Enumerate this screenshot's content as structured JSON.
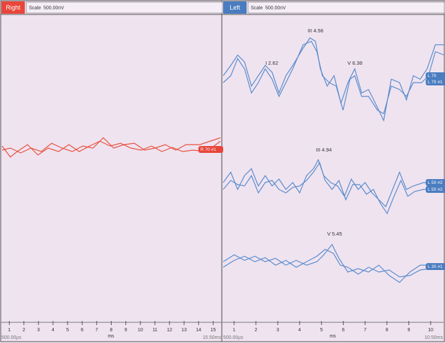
{
  "panels": [
    {
      "ear": "Right",
      "scale_label": "Scale",
      "scale": "500.00nV",
      "x_start": "500.00µs",
      "x_end": "15.50ms",
      "x_unit": "ms",
      "xlim": [
        0.5,
        15.5
      ],
      "xticks": [
        1,
        2,
        3,
        4,
        5,
        6,
        7,
        8,
        9,
        10,
        11,
        12,
        13,
        14,
        15
      ],
      "tags": [
        "R 70 #1"
      ],
      "peaks": []
    },
    {
      "ear": "Left",
      "scale_label": "Scale",
      "scale": "500.00nV",
      "x_start": "500.00µs",
      "x_end": "10.50ms",
      "x_unit": "ms",
      "xlim": [
        0.5,
        10.5
      ],
      "xticks": [
        1,
        2,
        3,
        4,
        5,
        6,
        7,
        8,
        9,
        10
      ],
      "tags": [
        "L 70",
        "L 70 #1",
        "L 50 #2",
        "L 50 #2",
        "L 30 #1"
      ],
      "peaks": [
        {
          "name": "I",
          "latency": 2.62
        },
        {
          "name": "III",
          "latency": 4.56
        },
        {
          "name": "V",
          "latency": 6.38
        },
        {
          "name": "III",
          "latency": 4.94
        },
        {
          "name": "V",
          "latency": 5.45
        }
      ]
    }
  ]
}
